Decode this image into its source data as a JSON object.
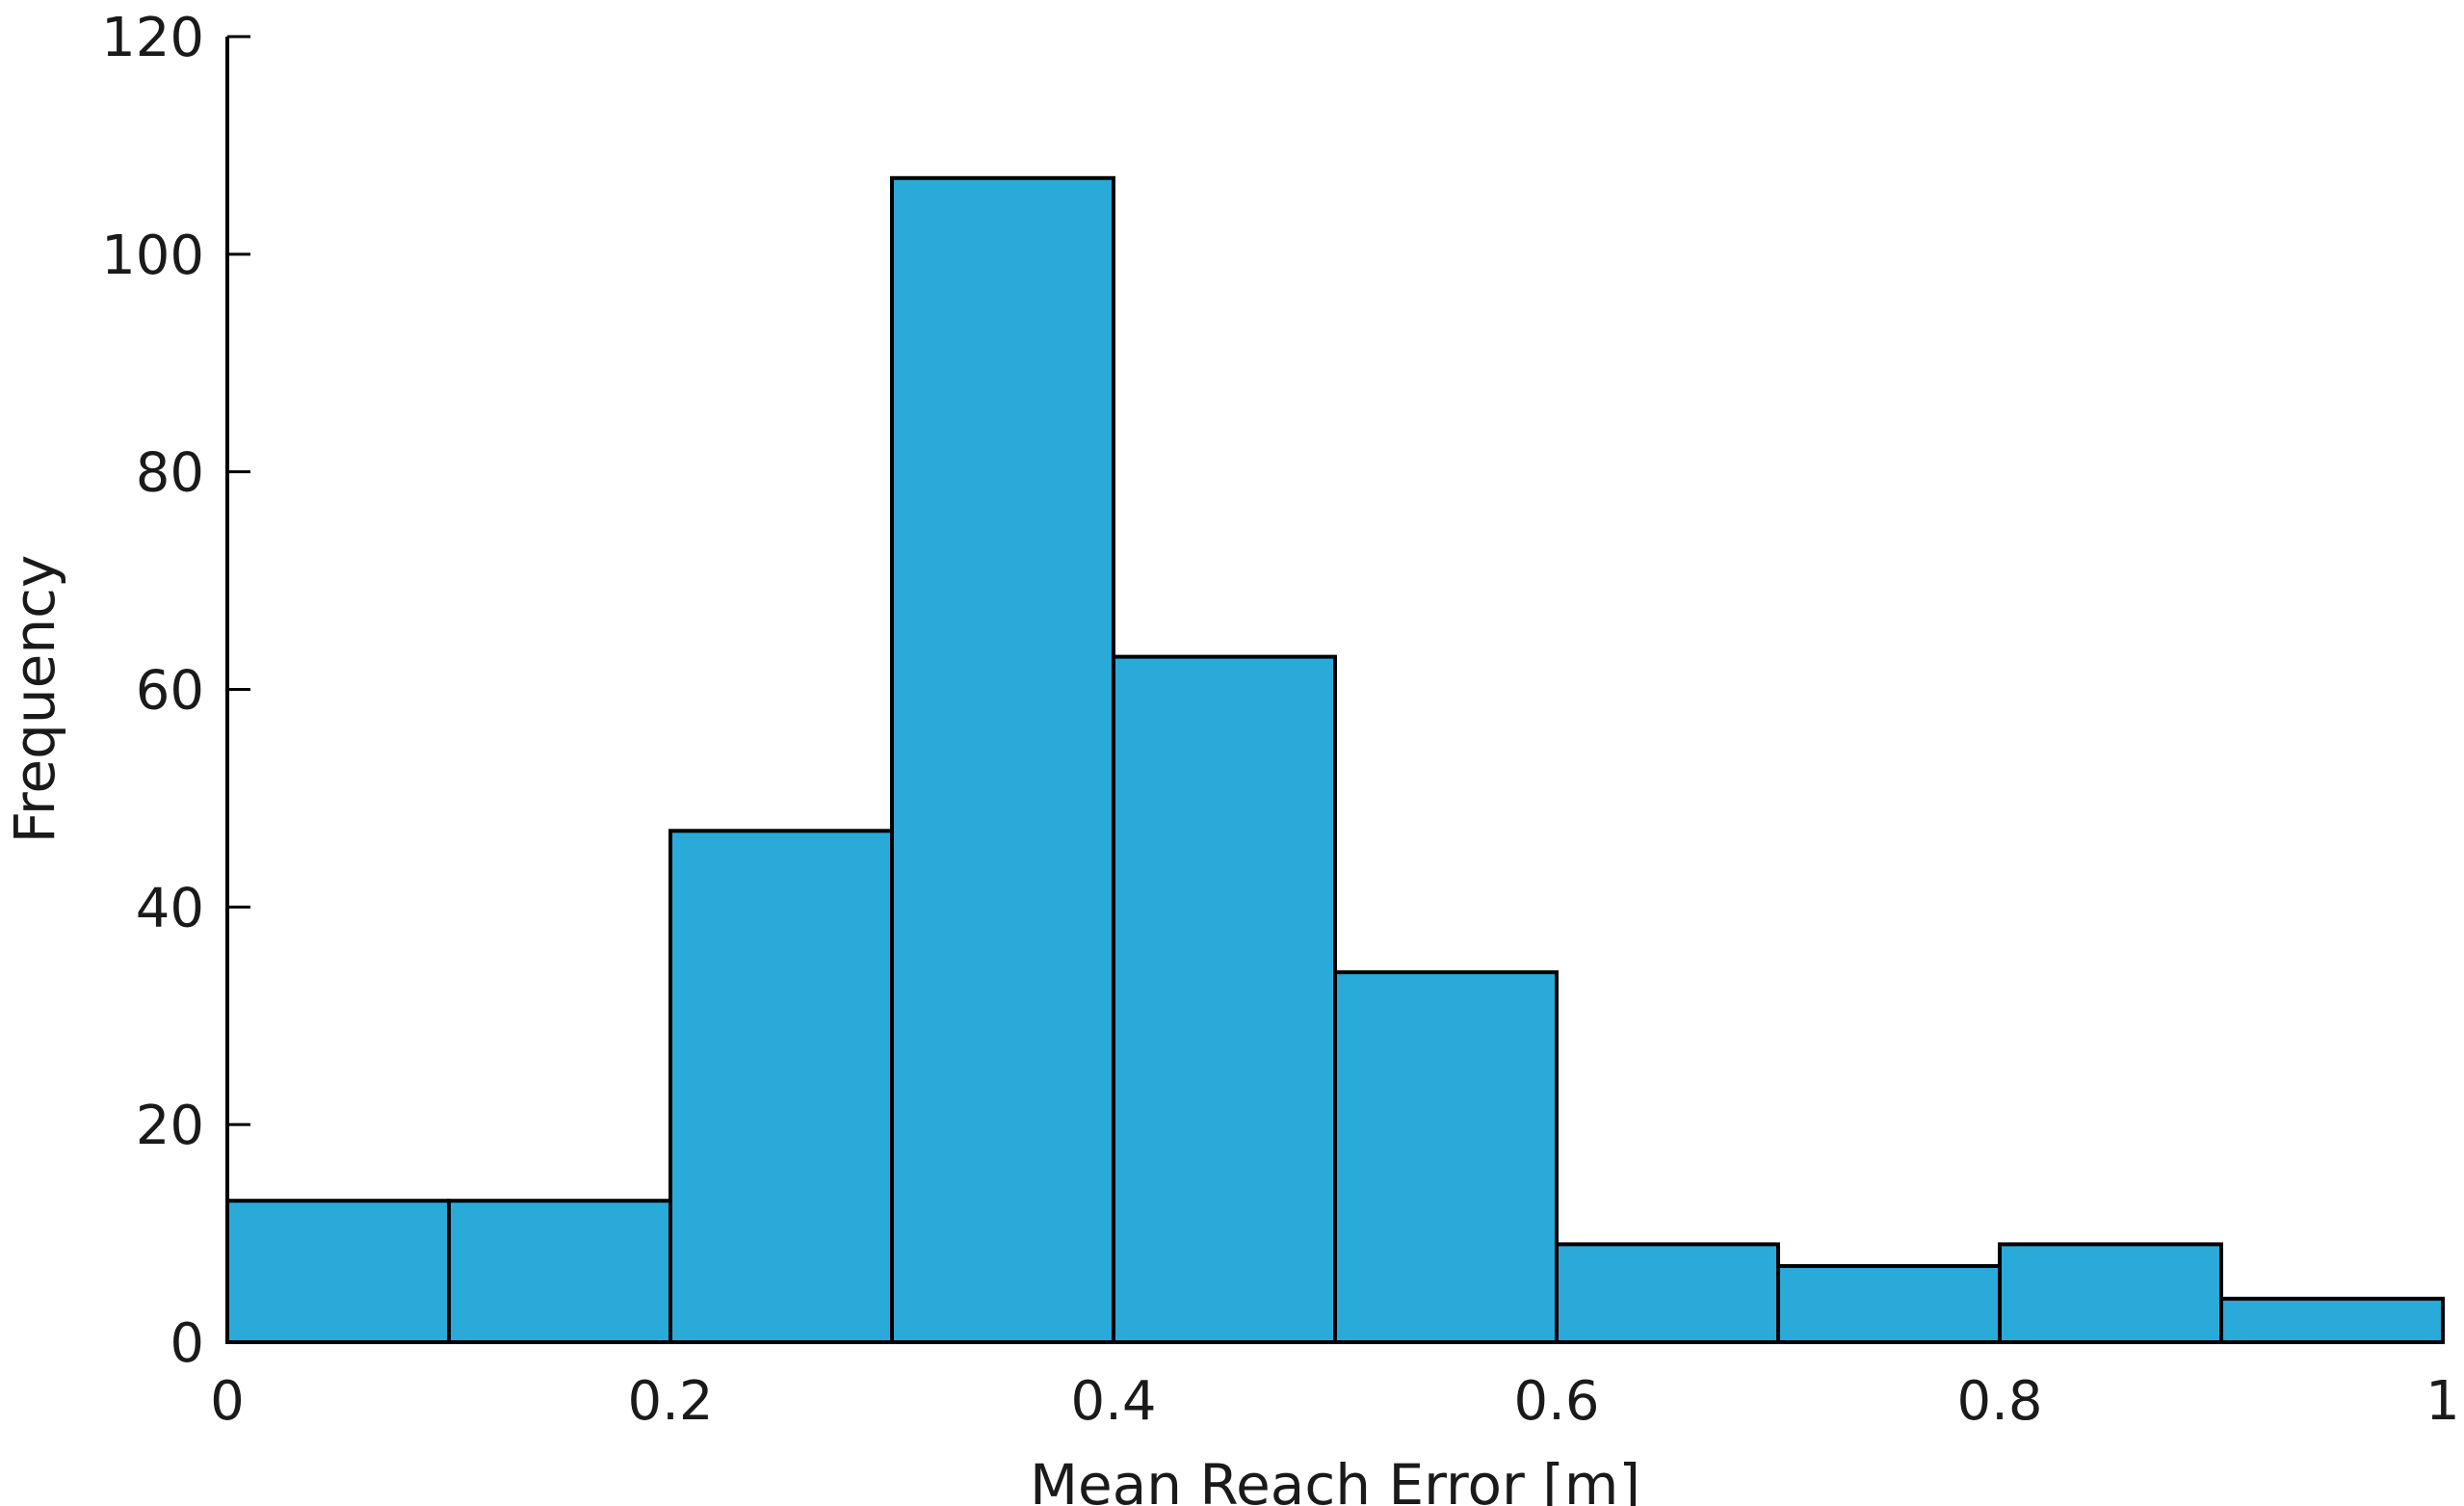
{
  "chart_data": {
    "type": "bar",
    "title": "",
    "xlabel": "Mean Reach Error [m]",
    "ylabel": "Frequency",
    "bin_edges": [
      0,
      0.1,
      0.2,
      0.3,
      0.4,
      0.5,
      0.6,
      0.7,
      0.8,
      0.9,
      1.0
    ],
    "values": [
      13,
      13,
      47,
      107,
      63,
      34,
      9,
      7,
      9,
      4
    ],
    "xlim": [
      0,
      1
    ],
    "ylim": [
      0,
      120
    ],
    "x_ticks": [
      0,
      0.2,
      0.4,
      0.6,
      0.8,
      1
    ],
    "x_tick_labels": [
      "0",
      "0.2",
      "0.4",
      "0.6",
      "0.8",
      "1"
    ],
    "y_ticks": [
      0,
      20,
      40,
      60,
      80,
      100,
      120
    ],
    "y_tick_labels": [
      "0",
      "20",
      "40",
      "60",
      "80",
      "100",
      "120"
    ],
    "grid": false,
    "bar_color": "#2aaad9",
    "edge_color": "#000000"
  }
}
